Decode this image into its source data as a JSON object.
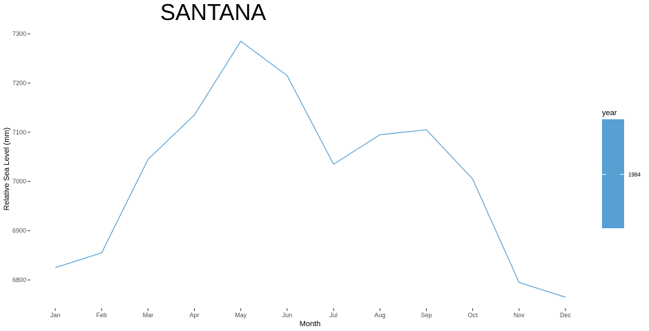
{
  "chart_data": {
    "type": "line",
    "title": "SANTANA",
    "xlabel": "Month",
    "ylabel": "Relative Sea Level (mm)",
    "categories": [
      "Jan",
      "Feb",
      "Mar",
      "Apr",
      "May",
      "Jun",
      "Jul",
      "Aug",
      "Sep",
      "Oct",
      "Nov",
      "Dec"
    ],
    "series": [
      {
        "name": "1984",
        "color": "#56a0d3",
        "values": [
          6825,
          6855,
          7045,
          7135,
          7285,
          7215,
          7035,
          7095,
          7105,
          7005,
          6795,
          6765
        ]
      }
    ],
    "yticks": [
      6800,
      6900,
      7000,
      7100,
      7200,
      7300
    ],
    "ylim": [
      6750,
      7310
    ],
    "grid": false,
    "legend": {
      "title": "year",
      "labels": [
        "1984"
      ],
      "placement": "right"
    }
  }
}
